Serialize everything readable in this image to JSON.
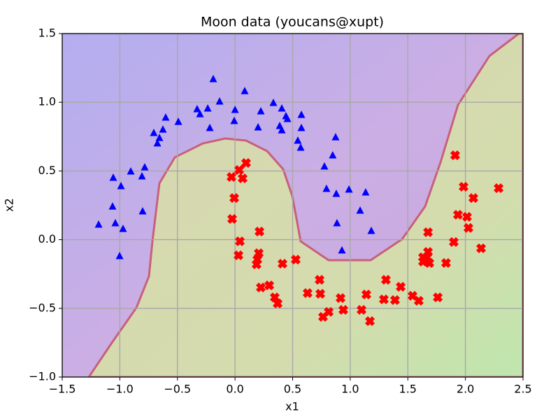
{
  "chart_data": {
    "type": "scatter",
    "title": "Moon data (youcans@xupt)",
    "xlabel": "x1",
    "ylabel": "x2",
    "xlim": [
      -1.5,
      2.5
    ],
    "ylim": [
      -1.0,
      1.5
    ],
    "xticks": [
      {
        "value": -1.5,
        "label": "−1.5"
      },
      {
        "value": -1.0,
        "label": "−1.0"
      },
      {
        "value": -0.5,
        "label": "−0.5"
      },
      {
        "value": 0,
        "label": "0.0"
      },
      0.5,
      {
        "value": 1,
        "label": "1.0"
      },
      1.5,
      {
        "value": 2,
        "label": "2.0"
      },
      2.5
    ],
    "yticks": [
      {
        "value": -1.0,
        "label": "−1.0"
      },
      {
        "value": -0.5,
        "label": "−0.5"
      },
      {
        "value": 0,
        "label": "0.0"
      },
      0.5,
      {
        "value": 1,
        "label": "1.0"
      },
      1.5
    ],
    "grid": true,
    "series": [
      {
        "color": "#0000ff",
        "marker": "triangle",
        "x": [
          -0.189,
          0.084,
          -0.134,
          0.333,
          -0.329,
          -0.237,
          0.0,
          -0.602,
          -0.492,
          -0.304,
          0.224,
          0.406,
          0.442,
          0.455,
          0.576,
          -0.219,
          -0.007,
          0.2,
          0.388,
          0.406,
          0.576,
          -0.705,
          -0.626,
          -0.656,
          -0.674,
          0.545,
          0.57,
          0.873,
          0.848,
          0.776,
          -0.784,
          -0.905,
          -1.057,
          -0.808,
          -0.99,
          0.794,
          0.879,
          0.989,
          1.134,
          -1.063,
          -0.802,
          1.086,
          -1.184,
          -1.039,
          -0.972,
          0.885,
          1.183,
          -1.002,
          0.928
        ],
        "values": [
          1.169,
          1.082,
          1.006,
          0.996,
          0.95,
          0.955,
          0.945,
          0.889,
          0.858,
          0.914,
          0.935,
          0.955,
          0.899,
          0.879,
          0.909,
          0.813,
          0.864,
          0.818,
          0.828,
          0.797,
          0.813,
          0.777,
          0.802,
          0.741,
          0.701,
          0.721,
          0.67,
          0.746,
          0.614,
          0.533,
          0.527,
          0.497,
          0.451,
          0.461,
          0.39,
          0.37,
          0.334,
          0.365,
          0.344,
          0.242,
          0.207,
          0.212,
          0.11,
          0.12,
          0.079,
          0.12,
          0.064,
          -0.119,
          -0.078
        ]
      },
      {
        "color": "#ff0000",
        "marker": "x",
        "x": [
          0.096,
          0.036,
          -0.031,
          0.066,
          -0.007,
          -0.025,
          0.212,
          0.042,
          0.03,
          0.206,
          0.194,
          0.187,
          0.412,
          0.527,
          0.224,
          0.297,
          0.345,
          0.37,
          0.63,
          0.734,
          0.74,
          0.813,
          0.764,
          0.916,
          0.94,
          1.098,
          1.171,
          1.14,
          1.31,
          1.292,
          1.389,
          1.438,
          1.541,
          1.595,
          1.76,
          1.632,
          1.675,
          1.675,
          1.687,
          1.669,
          1.632,
          1.832,
          1.899,
          1.911,
          1.935,
          1.984,
          2.014,
          2.026,
          2.069,
          2.136,
          2.288
        ],
        "values": [
          0.558,
          0.507,
          0.456,
          0.446,
          0.303,
          0.151,
          0.059,
          -0.012,
          -0.114,
          -0.099,
          -0.145,
          -0.18,
          -0.175,
          -0.145,
          -0.348,
          -0.333,
          -0.42,
          -0.465,
          -0.389,
          -0.292,
          -0.394,
          -0.526,
          -0.562,
          -0.425,
          -0.511,
          -0.511,
          -0.593,
          -0.399,
          -0.292,
          -0.435,
          -0.44,
          -0.343,
          -0.409,
          -0.445,
          -0.42,
          -0.129,
          0.054,
          -0.089,
          -0.17,
          -0.129,
          -0.16,
          -0.17,
          -0.017,
          0.614,
          0.181,
          0.385,
          0.166,
          0.085,
          0.303,
          -0.063,
          0.375
        ]
      }
    ]
  }
}
